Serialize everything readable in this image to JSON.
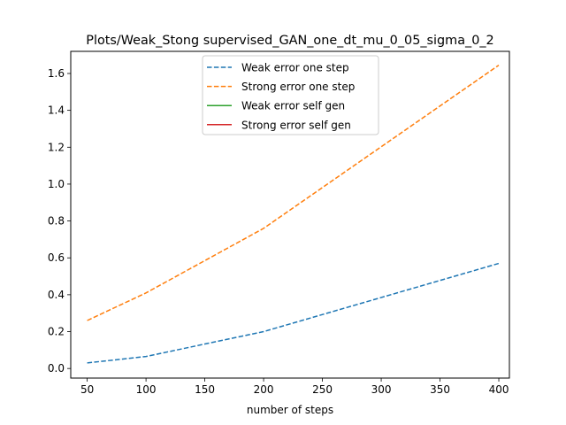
{
  "chart_data": {
    "type": "line",
    "title": "Plots/Weak_Stong supervised_GAN_one_dt_mu_0_05_sigma_0_2",
    "xlabel": "number of steps",
    "ylabel": "",
    "xlim": [
      36,
      409
    ],
    "ylim": [
      -0.052,
      1.72
    ],
    "xticks": [
      50,
      100,
      150,
      200,
      250,
      300,
      350,
      400
    ],
    "yticks": [
      0.0,
      0.2,
      0.4,
      0.6,
      0.8,
      1.0,
      1.2,
      1.4,
      1.6
    ],
    "ytick_labels": [
      "0.0",
      "0.2",
      "0.4",
      "0.6",
      "0.8",
      "1.0",
      "1.2",
      "1.4",
      "1.6"
    ],
    "grid": false,
    "legend_position": "top-center",
    "series": [
      {
        "name": "Weak error one step",
        "color": "#1f77b4",
        "style": "dashed",
        "x": [
          50,
          100,
          200,
          400
        ],
        "y": [
          0.03,
          0.065,
          0.2,
          0.57
        ]
      },
      {
        "name": "Strong error one step",
        "color": "#ff7f0e",
        "style": "dashed",
        "x": [
          50,
          100,
          200,
          400
        ],
        "y": [
          0.26,
          0.41,
          0.76,
          1.645
        ]
      },
      {
        "name": "Weak error self gen",
        "color": "#2ca02c",
        "style": "solid",
        "x": [],
        "y": []
      },
      {
        "name": "Strong error self gen",
        "color": "#d62728",
        "style": "solid",
        "x": [],
        "y": []
      }
    ]
  }
}
